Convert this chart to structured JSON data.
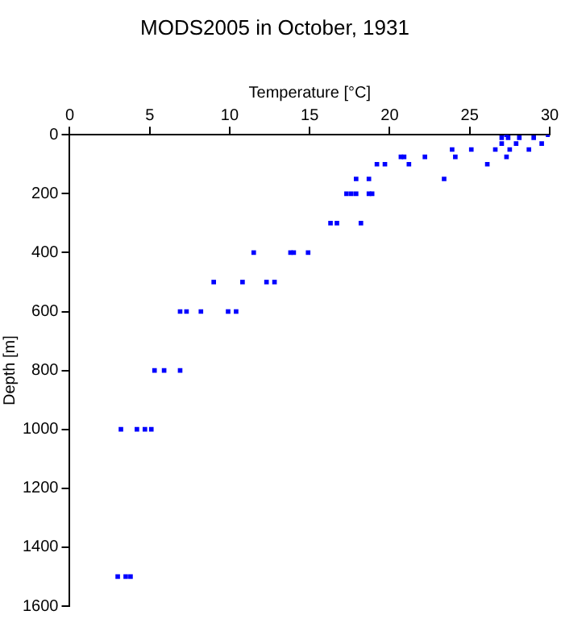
{
  "chart_data": {
    "type": "scatter",
    "title": "MODS2005 in October, 1931",
    "xlabel": "Temperature [°C]",
    "ylabel": "Depth [m]",
    "x": [
      27.3,
      29.9,
      27.0,
      27.4,
      28.1,
      29.0,
      27.0,
      27.9,
      29.5,
      23.9,
      25.1,
      26.6,
      27.5,
      28.7,
      20.7,
      20.9,
      22.2,
      24.1,
      27.3,
      19.2,
      19.7,
      21.2,
      26.1,
      17.9,
      18.7,
      23.4,
      17.3,
      17.6,
      17.9,
      18.7,
      18.9,
      16.3,
      16.7,
      18.2,
      11.5,
      13.8,
      14.0,
      14.9,
      9.0,
      10.8,
      12.3,
      12.8,
      6.9,
      7.3,
      8.2,
      9.9,
      10.4,
      5.3,
      5.9,
      6.9,
      3.2,
      4.2,
      4.7,
      5.1,
      3.0,
      3.5,
      3.8
    ],
    "values": [
      0,
      0,
      10,
      10,
      10,
      10,
      30,
      30,
      30,
      50,
      50,
      50,
      50,
      50,
      75,
      75,
      75,
      75,
      75,
      100,
      100,
      100,
      100,
      150,
      150,
      150,
      200,
      200,
      200,
      200,
      200,
      300,
      300,
      300,
      400,
      400,
      400,
      400,
      500,
      500,
      500,
      500,
      600,
      600,
      600,
      600,
      600,
      800,
      800,
      800,
      1000,
      1000,
      1000,
      1000,
      1500,
      1500,
      1500
    ],
    "color": "#0000ff",
    "marker": "square",
    "xlim": [
      0,
      30
    ],
    "xticks": [
      0,
      5,
      10,
      15,
      20,
      25,
      30
    ],
    "ylim": [
      1600,
      0
    ],
    "yticks": [
      0,
      200,
      400,
      600,
      800,
      1000,
      1200,
      1400,
      1600
    ],
    "grid": false,
    "legend": false
  }
}
